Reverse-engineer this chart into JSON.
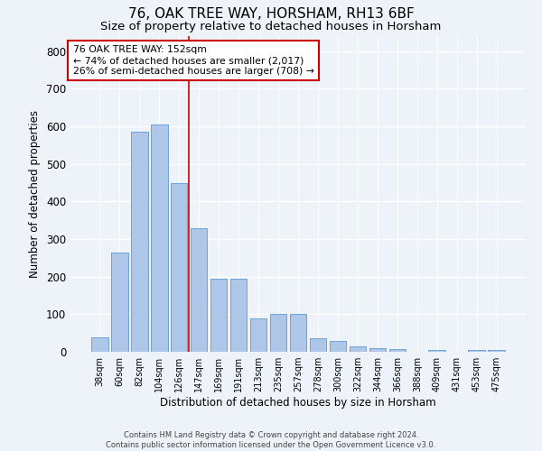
{
  "title_line1": "76, OAK TREE WAY, HORSHAM, RH13 6BF",
  "title_line2": "Size of property relative to detached houses in Horsham",
  "xlabel": "Distribution of detached houses by size in Horsham",
  "ylabel": "Number of detached properties",
  "categories": [
    "38sqm",
    "60sqm",
    "82sqm",
    "104sqm",
    "126sqm",
    "147sqm",
    "169sqm",
    "191sqm",
    "213sqm",
    "235sqm",
    "257sqm",
    "278sqm",
    "300sqm",
    "322sqm",
    "344sqm",
    "366sqm",
    "388sqm",
    "409sqm",
    "431sqm",
    "453sqm",
    "475sqm"
  ],
  "values": [
    38,
    265,
    585,
    605,
    450,
    328,
    195,
    195,
    90,
    100,
    100,
    35,
    30,
    15,
    10,
    8,
    0,
    5,
    0,
    5,
    5
  ],
  "bar_color": "#aec6e8",
  "bar_edge_color": "#5b9bd5",
  "annotation_line1": "76 OAK TREE WAY: 152sqm",
  "annotation_line2": "← 74% of detached houses are smaller (2,017)",
  "annotation_line3": "26% of semi-detached houses are larger (708) →",
  "annotation_box_color": "#ffffff",
  "annotation_box_edge": "#cc0000",
  "vline_color": "#cc0000",
  "vline_x_index": 5,
  "ylim": [
    0,
    840
  ],
  "yticks": [
    0,
    100,
    200,
    300,
    400,
    500,
    600,
    700,
    800
  ],
  "footer_line1": "Contains HM Land Registry data © Crown copyright and database right 2024.",
  "footer_line2": "Contains public sector information licensed under the Open Government Licence v3.0.",
  "bg_color": "#eef2f9",
  "plot_bg_color": "#eef2f9",
  "grid_color": "#ffffff",
  "title1_fontsize": 11,
  "title2_fontsize": 9.5,
  "bar_width": 0.85
}
